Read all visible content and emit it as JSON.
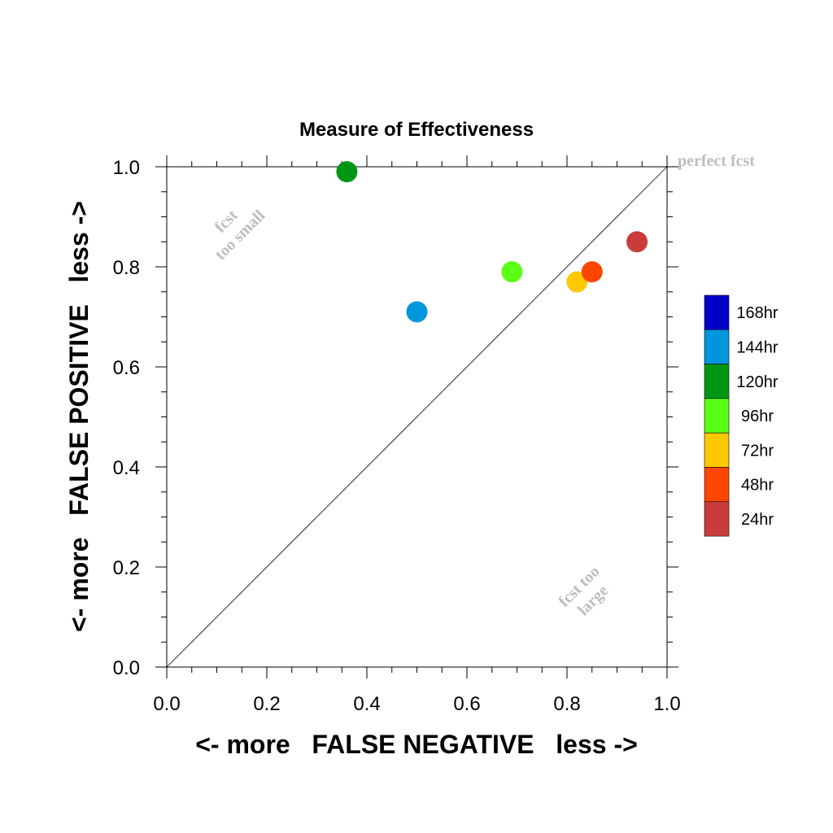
{
  "chart_data": {
    "type": "scatter",
    "title": "Measure of Effectiveness",
    "xlabel": "<- more   FALSE NEGATIVE   less ->",
    "ylabel": "<- more   FALSE POSITIVE   less ->",
    "xlim": [
      0.0,
      1.0
    ],
    "ylim": [
      0.0,
      1.0
    ],
    "x_ticks": [
      "0.0",
      "0.2",
      "0.4",
      "0.6",
      "0.8",
      "1.0"
    ],
    "y_ticks": [
      "0.0",
      "0.2",
      "0.4",
      "0.6",
      "0.8",
      "1.0"
    ],
    "grid": false,
    "reference_line": {
      "from": [
        0,
        0
      ],
      "to": [
        1,
        1
      ]
    },
    "annotations": {
      "perfect": "perfect fcst",
      "too_small_1": "fcst",
      "too_small_2": "too small",
      "too_large_1": "fcst too",
      "too_large_2": "large"
    },
    "legend_position": "right",
    "series": [
      {
        "name": "168hr",
        "color": "#0000c8",
        "points": []
      },
      {
        "name": "144hr",
        "color": "#0096dc",
        "points": [
          {
            "x": 0.5,
            "y": 0.71
          }
        ]
      },
      {
        "name": "120hr",
        "color": "#009614",
        "points": [
          {
            "x": 0.36,
            "y": 0.99
          }
        ]
      },
      {
        "name": "96hr",
        "color": "#5aff14",
        "points": [
          {
            "x": 0.69,
            "y": 0.79
          }
        ]
      },
      {
        "name": "72hr",
        "color": "#ffc800",
        "points": [
          {
            "x": 0.82,
            "y": 0.77
          }
        ]
      },
      {
        "name": "48hr",
        "color": "#ff4600",
        "points": [
          {
            "x": 0.85,
            "y": 0.79
          }
        ]
      },
      {
        "name": "24hr",
        "color": "#c83c3c",
        "points": [
          {
            "x": 0.94,
            "y": 0.85
          }
        ]
      }
    ]
  }
}
